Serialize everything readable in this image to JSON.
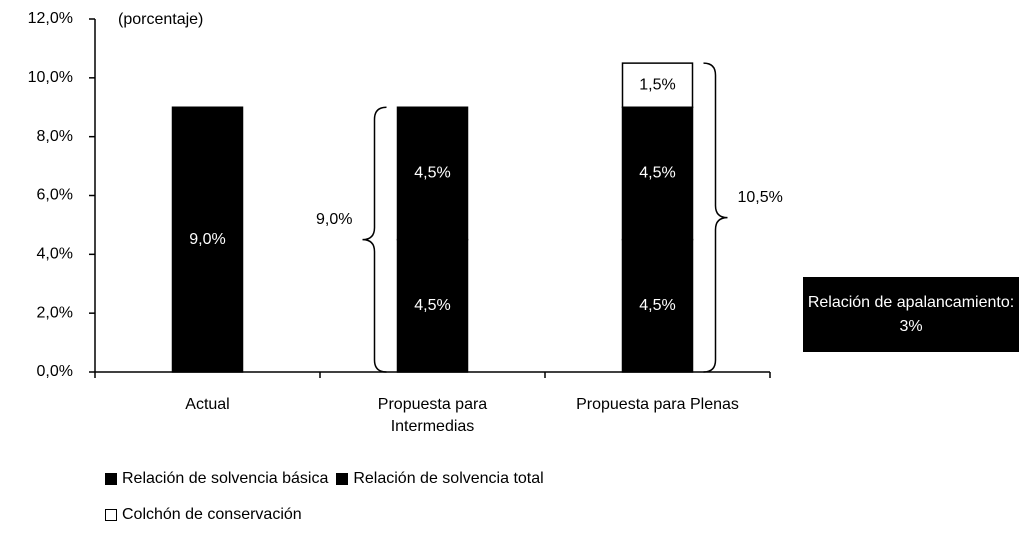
{
  "chart_data": {
    "type": "stacked_bar",
    "subtitle": "(porcentaje)",
    "categories": [
      "Actual",
      "Propuesta para Intermedias",
      "Propuesta para Plenas"
    ],
    "series": [
      {
        "name": "Relación de solvencia básica",
        "color": "#000000",
        "values": [
          9.0,
          4.5,
          4.5
        ],
        "value_labels": [
          "9,0%",
          "4,5%",
          "4,5%"
        ]
      },
      {
        "name": "Relación de solvencia total",
        "color": "#000000",
        "values": [
          null,
          4.5,
          4.5
        ],
        "value_labels": [
          null,
          "4,5%",
          "4,5%"
        ]
      },
      {
        "name": "Colchón de conservación",
        "color": "#ffffff",
        "values": [
          null,
          null,
          1.5
        ],
        "value_labels": [
          null,
          null,
          "1,5%"
        ]
      }
    ],
    "ylim": [
      0,
      12
    ],
    "yticks": [
      {
        "value": 0,
        "label": "0,0%"
      },
      {
        "value": 2,
        "label": "2,0%"
      },
      {
        "value": 4,
        "label": "4,0%"
      },
      {
        "value": 6,
        "label": "6,0%"
      },
      {
        "value": 8,
        "label": "8,0%"
      },
      {
        "value": 10,
        "label": "10,0%"
      },
      {
        "value": 12,
        "label": "12,0%"
      }
    ],
    "annotations": [
      {
        "label": "9,0%",
        "value": 9.0
      },
      {
        "label": "10,5%",
        "value": 10.5
      }
    ],
    "note": "Relación de apalancamiento: 3%",
    "legend": "bottom"
  }
}
